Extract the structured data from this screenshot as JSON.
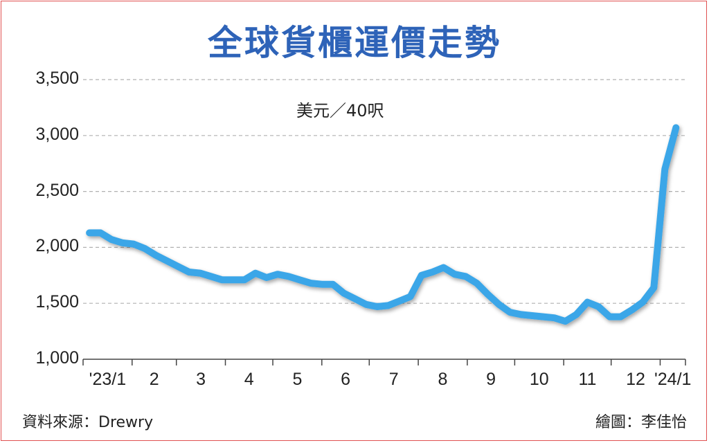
{
  "chart_data": {
    "type": "line",
    "title": "全球貨櫃運價走勢",
    "unit_label": "美元／40呎",
    "source": "資料來源：Drewry",
    "credit": "繪圖：李佳怡",
    "ylim": [
      1000,
      3500
    ],
    "yticks": [
      "1,000",
      "1,500",
      "2,000",
      "2,500",
      "3,000",
      "3,500"
    ],
    "xticks": [
      "'23/1",
      "2",
      "3",
      "4",
      "5",
      "6",
      "7",
      "8",
      "9",
      "10",
      "11",
      "12",
      "'24/1"
    ],
    "grid": "horizontal-dashed",
    "line_color": "#3aa6e8",
    "series": [
      {
        "x": [
          "2023-01-05",
          "2023-01-12",
          "2023-01-19",
          "2023-01-26",
          "2023-02-02",
          "2023-02-09",
          "2023-02-16",
          "2023-02-23",
          "2023-03-02",
          "2023-03-09",
          "2023-03-16",
          "2023-03-23",
          "2023-03-30",
          "2023-04-06",
          "2023-04-13",
          "2023-04-20",
          "2023-04-27",
          "2023-05-04",
          "2023-05-11",
          "2023-05-18",
          "2023-05-25",
          "2023-06-01",
          "2023-06-08",
          "2023-06-15",
          "2023-06-22",
          "2023-06-29",
          "2023-07-06",
          "2023-07-13",
          "2023-07-20",
          "2023-07-27",
          "2023-08-03",
          "2023-08-10",
          "2023-08-17",
          "2023-08-24",
          "2023-08-31",
          "2023-09-07",
          "2023-09-14",
          "2023-09-21",
          "2023-09-28",
          "2023-10-05",
          "2023-10-12",
          "2023-10-19",
          "2023-10-26",
          "2023-11-02",
          "2023-11-09",
          "2023-11-16",
          "2023-11-23",
          "2023-11-30",
          "2023-12-07",
          "2023-12-14",
          "2023-12-21",
          "2023-12-28",
          "2024-01-04",
          "2024-01-11"
        ],
        "values": [
          2130,
          2130,
          2070,
          2040,
          2030,
          1990,
          1930,
          1880,
          1830,
          1780,
          1770,
          1740,
          1710,
          1710,
          1710,
          1770,
          1730,
          1760,
          1740,
          1710,
          1680,
          1670,
          1670,
          1590,
          1540,
          1490,
          1470,
          1480,
          1520,
          1560,
          1750,
          1780,
          1820,
          1760,
          1740,
          1680,
          1580,
          1490,
          1420,
          1400,
          1390,
          1380,
          1370,
          1340,
          1400,
          1510,
          1470,
          1380,
          1380,
          1440,
          1510,
          1640,
          2700,
          3070
        ]
      }
    ]
  }
}
